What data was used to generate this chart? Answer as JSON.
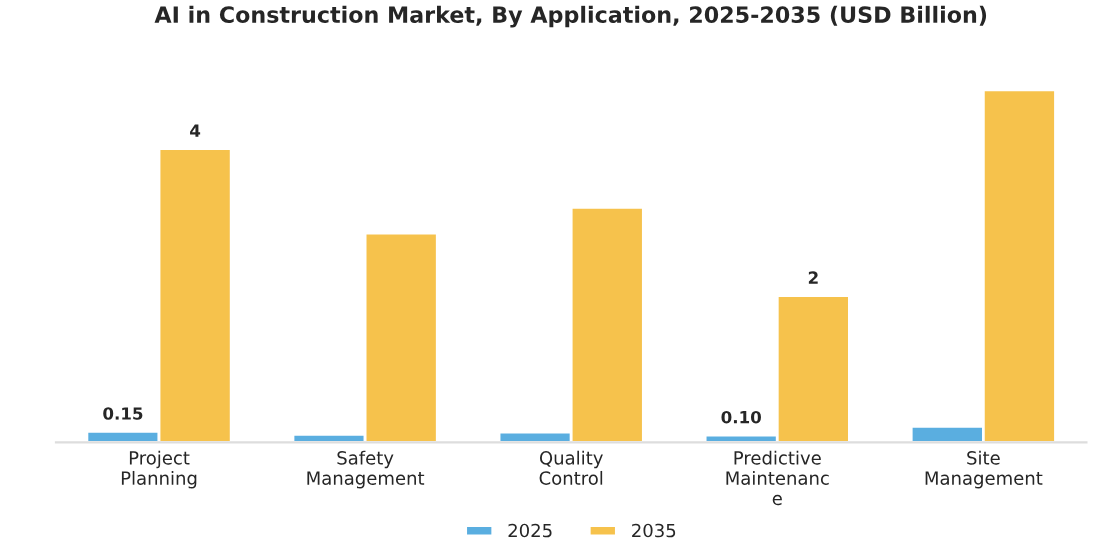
{
  "chart_data": {
    "type": "bar",
    "title": "AI in Construction Market, By Application, 2025-2035 (USD Billion)",
    "categories": [
      "Project\nPlanning",
      "Safety\nManagement",
      "Quality\nControl",
      "Predictive\nMaintenanc\ne",
      "Site\nManagement"
    ],
    "legend": "bottom",
    "grid": false,
    "series": [
      {
        "name": "2025",
        "color": "#5aaee0",
        "values": [
          0.15,
          0.11,
          0.14,
          0.1,
          0.22
        ],
        "value_labels": [
          "0.15",
          null,
          null,
          "0.10",
          null
        ]
      },
      {
        "name": "2035",
        "color": "#f6c24c",
        "values": [
          4,
          2.85,
          3.2,
          2,
          4.8
        ],
        "value_labels": [
          "4",
          null,
          null,
          "2",
          null
        ]
      }
    ]
  }
}
